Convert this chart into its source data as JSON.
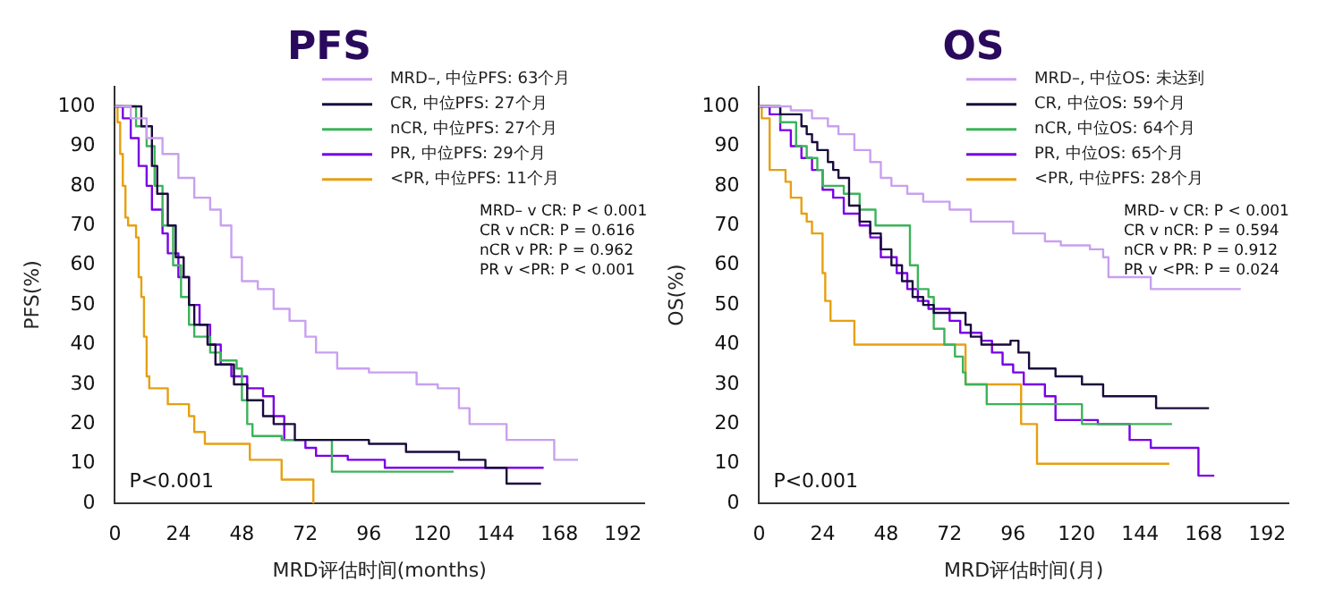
{
  "chart_data": [
    {
      "type": "step",
      "title": "PFS",
      "xlabel": "MRD评估时间(months)",
      "ylabel": "PFS(%)",
      "xlim": [
        0,
        200
      ],
      "xticks": [
        0,
        24,
        48,
        72,
        96,
        120,
        144,
        168,
        192
      ],
      "ylim": [
        0,
        105
      ],
      "yticks": [
        0,
        10,
        20,
        30,
        40,
        50,
        60,
        70,
        80,
        90,
        100
      ],
      "legend": "top right",
      "grid": false,
      "annotations": [
        "MRD– v CR: P < 0.001",
        "CR v nCR: P = 0.616",
        "nCR v PR: P = 0.962",
        "PR v <PR: P < 0.001",
        "P<0.001"
      ],
      "series": [
        {
          "name": "MRD–, 中位PFS: 63个月",
          "color": "#c9a0f0",
          "x": [
            0,
            6,
            12,
            18,
            24,
            30,
            36,
            40,
            44,
            48,
            54,
            60,
            66,
            72,
            76,
            84,
            96,
            114,
            122,
            130,
            134,
            148,
            166,
            175
          ],
          "values": [
            100,
            97,
            92,
            88,
            82,
            77,
            74,
            70,
            62,
            56,
            54,
            49,
            46,
            42,
            38,
            34,
            33,
            30,
            29,
            24,
            20,
            16,
            11,
            11
          ]
        },
        {
          "name": "CR, 中位PFS: 27个月",
          "color": "#1a0a3c",
          "x": [
            0,
            5,
            10,
            14,
            16,
            20,
            23,
            26,
            28,
            30,
            35,
            38,
            45,
            50,
            56,
            60,
            68,
            96,
            110,
            130,
            140,
            148,
            161
          ],
          "values": [
            100,
            100,
            95,
            85,
            78,
            70,
            62,
            57,
            50,
            45,
            40,
            35,
            30,
            26,
            22,
            20,
            16,
            15,
            13,
            11,
            9,
            5,
            5
          ]
        },
        {
          "name": "nCR, 中位PFS: 27个月",
          "color": "#3cb35a",
          "x": [
            0,
            4,
            8,
            12,
            15,
            18,
            22,
            25,
            28,
            30,
            36,
            40,
            46,
            48,
            50,
            52,
            63,
            82,
            128
          ],
          "values": [
            100,
            100,
            95,
            90,
            80,
            70,
            60,
            52,
            45,
            42,
            38,
            36,
            34,
            26,
            20,
            17,
            16,
            8,
            8
          ]
        },
        {
          "name": "PR, 中位PFS: 29个月",
          "color": "#7a00e6",
          "x": [
            0,
            3,
            6,
            9,
            12,
            14,
            18,
            20,
            24,
            28,
            32,
            36,
            40,
            44,
            50,
            56,
            60,
            64,
            72,
            76,
            88,
            102,
            162
          ],
          "values": [
            100,
            97,
            92,
            85,
            80,
            74,
            68,
            63,
            57,
            50,
            45,
            40,
            35,
            32,
            29,
            27,
            22,
            16,
            14,
            12,
            11,
            9,
            9
          ]
        },
        {
          "name": "<PR, 中位PFS: 11个月",
          "color": "#e6a010",
          "x": [
            0,
            1,
            2,
            3,
            4,
            5,
            8,
            9,
            10,
            11,
            12,
            13,
            20,
            28,
            30,
            34,
            51,
            63,
            75
          ],
          "values": [
            100,
            96,
            88,
            80,
            72,
            70,
            67,
            57,
            52,
            42,
            32,
            29,
            25,
            22,
            18,
            15,
            11,
            6,
            0
          ]
        }
      ]
    },
    {
      "type": "step",
      "title": "OS",
      "xlabel": "MRD评估时间(月)",
      "ylabel": "OS(%)",
      "xlim": [
        0,
        200
      ],
      "xticks": [
        0,
        24,
        48,
        72,
        96,
        120,
        144,
        168,
        192
      ],
      "ylim": [
        0,
        105
      ],
      "yticks": [
        0,
        10,
        20,
        30,
        40,
        50,
        60,
        70,
        80,
        90,
        100
      ],
      "legend": "top right",
      "grid": false,
      "annotations": [
        "MRD- v CR: P < 0.001",
        "CR v nCR: P = 0.594",
        "nCR v PR: P = 0.912",
        "PR v <PR: P = 0.024",
        "P<0.001"
      ],
      "series": [
        {
          "name": "MRD–, 中位OS: 未达到",
          "color": "#c9a0f0",
          "x": [
            0,
            12,
            20,
            26,
            30,
            36,
            42,
            46,
            50,
            56,
            62,
            72,
            80,
            96,
            108,
            114,
            125,
            130,
            132,
            148,
            182
          ],
          "values": [
            100,
            99,
            97,
            95,
            93,
            89,
            86,
            82,
            80,
            78,
            76,
            74,
            71,
            68,
            66,
            65,
            64,
            62,
            57,
            54,
            54
          ]
        },
        {
          "name": "CR, 中位OS: 59个月",
          "color": "#1a0a3c",
          "x": [
            0,
            8,
            16,
            18,
            20,
            22,
            26,
            28,
            30,
            34,
            38,
            42,
            46,
            50,
            54,
            58,
            62,
            66,
            78,
            80,
            84,
            95,
            98,
            102,
            112,
            122,
            130,
            150,
            170
          ],
          "values": [
            100,
            98,
            95,
            93,
            91,
            89,
            86,
            84,
            82,
            75,
            71,
            68,
            64,
            60,
            56,
            52,
            50,
            48,
            45,
            42,
            40,
            41,
            38,
            34,
            32,
            30,
            27,
            24,
            24
          ]
        },
        {
          "name": "nCR, 中位OS: 64个月",
          "color": "#3cb35a",
          "x": [
            0,
            5,
            8,
            14,
            18,
            22,
            24,
            32,
            38,
            44,
            57,
            60,
            64,
            66,
            70,
            74,
            77,
            78,
            86,
            122,
            156
          ],
          "values": [
            100,
            100,
            96,
            90,
            87,
            84,
            80,
            78,
            74,
            70,
            60,
            54,
            52,
            44,
            40,
            37,
            33,
            30,
            25,
            20,
            20
          ]
        },
        {
          "name": "PR, 中位OS: 65个月",
          "color": "#7a00e6",
          "x": [
            0,
            4,
            8,
            12,
            16,
            20,
            24,
            28,
            32,
            38,
            42,
            46,
            52,
            56,
            60,
            64,
            72,
            76,
            84,
            88,
            92,
            96,
            100,
            108,
            112,
            128,
            140,
            148,
            166,
            172
          ],
          "values": [
            100,
            98,
            94,
            90,
            87,
            84,
            79,
            77,
            73,
            70,
            67,
            62,
            58,
            54,
            51,
            49,
            46,
            43,
            41,
            38,
            35,
            33,
            30,
            27,
            21,
            20,
            16,
            14,
            7,
            7
          ]
        },
        {
          "name": "<PR, 中位PFS: 28个月",
          "color": "#e6a010",
          "x": [
            0,
            1,
            4,
            10,
            12,
            16,
            18,
            20,
            24,
            25,
            27,
            36,
            78,
            99,
            105,
            155
          ],
          "values": [
            100,
            97,
            84,
            81,
            77,
            73,
            71,
            68,
            58,
            51,
            46,
            40,
            30,
            20,
            10,
            10
          ]
        }
      ]
    }
  ]
}
